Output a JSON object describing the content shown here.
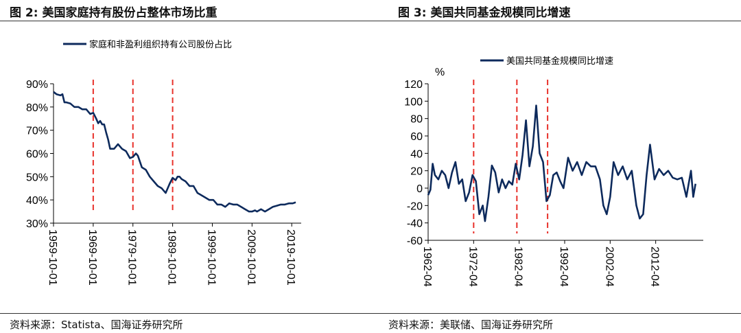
{
  "figure_left": {
    "title": "图 2:  美国家庭持有股份占整体市场比重",
    "source": "资料来源：Statista、国海证券研究所"
  },
  "figure_right": {
    "title": "图 3:  美国共同基金规模同比增速",
    "source": "资料来源：美联储、国海证券研究所"
  },
  "chart_data": [
    {
      "type": "line",
      "title": "",
      "xlabel": "",
      "ylabel": "",
      "ylim": [
        30,
        90
      ],
      "xlim": [
        1959.75,
        2020.75
      ],
      "ytick_labels": [
        "90%",
        "80%",
        "70%",
        "60%",
        "50%",
        "40%",
        "30%"
      ],
      "ytick_values": [
        90,
        80,
        70,
        60,
        50,
        40,
        30
      ],
      "xtick_labels": [
        "1959-10-01",
        "1969-10-01",
        "1979-10-01",
        "1989-10-01",
        "1999-10-01",
        "2009-10-01",
        "2019-10-01"
      ],
      "xtick_values": [
        1959.75,
        1969.75,
        1979.75,
        1989.75,
        1999.75,
        2009.75,
        2019.75
      ],
      "legend": "top-left",
      "grid": false,
      "series": [
        {
          "name": "家庭和非盈利组织持有公司股份占比",
          "color": "#0d2a5c",
          "x": [
            1959.75,
            1960.5,
            1961.5,
            1962.0,
            1962.5,
            1963.0,
            1964.0,
            1965.0,
            1966.0,
            1967.0,
            1968.0,
            1969.0,
            1969.75,
            1970.5,
            1971.0,
            1971.5,
            1972.0,
            1972.5,
            1973.0,
            1973.5,
            1974.0,
            1975.0,
            1976.0,
            1977.0,
            1978.0,
            1979.0,
            1979.75,
            1980.5,
            1981.0,
            1982.0,
            1983.0,
            1984.0,
            1985.0,
            1986.0,
            1987.0,
            1988.0,
            1989.0,
            1989.75,
            1990.5,
            1991.0,
            1991.5,
            1992.0,
            1993.0,
            1994.0,
            1995.0,
            1996.0,
            1997.0,
            1998.0,
            1999.0,
            2000.0,
            2001.0,
            2002.0,
            2003.0,
            2004.0,
            2005.0,
            2006.0,
            2007.0,
            2008.0,
            2009.0,
            2009.75,
            2010.5,
            2011.0,
            2012.0,
            2013.0,
            2014.0,
            2015.0,
            2016.0,
            2017.0,
            2018.0,
            2019.0,
            2020.0,
            2020.75
          ],
          "values": [
            86.5,
            85.5,
            85,
            85.5,
            82,
            82,
            81.5,
            80,
            80,
            79,
            79,
            77,
            77.5,
            75,
            73,
            74,
            72.5,
            72.5,
            69,
            66,
            62,
            62,
            64,
            62,
            61,
            58,
            58.5,
            60,
            59,
            54,
            53,
            50,
            48,
            46,
            45,
            43,
            47,
            49.5,
            48.5,
            50,
            50,
            49,
            48,
            46,
            46,
            43,
            42,
            41,
            40,
            40,
            38,
            38,
            37,
            38.5,
            38,
            38,
            37,
            36,
            35,
            35,
            35.5,
            35,
            36,
            35,
            36,
            37,
            37.5,
            38,
            38,
            38.5,
            38.5,
            39
          ]
        }
      ],
      "annotations": [
        {
          "type": "vline",
          "x": 1969.75,
          "color": "#e8302a",
          "style": "dashed"
        },
        {
          "type": "vline",
          "x": 1979.75,
          "color": "#e8302a",
          "style": "dashed"
        },
        {
          "type": "vline",
          "x": 1989.75,
          "color": "#e8302a",
          "style": "dashed"
        }
      ]
    },
    {
      "type": "line",
      "title": "",
      "xlabel": "",
      "ylabel": "%",
      "ylim": [
        -60,
        120
      ],
      "xlim": [
        1962.25,
        2021.5
      ],
      "ytick_labels": [
        "120",
        "100",
        "80",
        "60",
        "40",
        "20",
        "0",
        "-20",
        "-40",
        "-60"
      ],
      "ytick_values": [
        120,
        100,
        80,
        60,
        40,
        20,
        0,
        -20,
        -40,
        -60
      ],
      "xtick_labels": [
        "1962-04",
        "1972-04",
        "1982-04",
        "1992-04",
        "2002-04",
        "2012-04"
      ],
      "xtick_values": [
        1962.25,
        1972.25,
        1982.25,
        1992.25,
        2002.25,
        2012.25
      ],
      "legend": "top",
      "grid": false,
      "series": [
        {
          "name": "美国共同基金规模同比增速",
          "color": "#0d2a5c",
          "x": [
            1962.25,
            1962.75,
            1963.25,
            1963.75,
            1964.5,
            1965.25,
            1966.0,
            1966.75,
            1967.5,
            1968.25,
            1969.0,
            1969.75,
            1970.5,
            1971.25,
            1972.0,
            1972.75,
            1973.5,
            1974.25,
            1974.75,
            1975.5,
            1976.25,
            1977.0,
            1977.75,
            1978.5,
            1979.25,
            1980.0,
            1980.75,
            1981.5,
            1982.25,
            1983.0,
            1983.75,
            1984.5,
            1985.25,
            1986.0,
            1986.75,
            1987.5,
            1988.25,
            1989.0,
            1989.75,
            1990.5,
            1991.25,
            1992.0,
            1993.0,
            1994.0,
            1995.0,
            1996.0,
            1997.0,
            1998.0,
            1999.0,
            2000.0,
            2000.75,
            2001.5,
            2002.25,
            2003.0,
            2004.0,
            2005.0,
            2006.0,
            2007.0,
            2008.0,
            2008.75,
            2009.5,
            2010.25,
            2011.0,
            2012.0,
            2013.0,
            2014.0,
            2015.0,
            2016.0,
            2017.0,
            2018.0,
            2019.0,
            2019.5,
            2020.0,
            2020.5,
            2021.0
          ],
          "values": [
            -8,
            -2,
            28,
            15,
            10,
            20,
            15,
            0,
            18,
            30,
            5,
            10,
            -15,
            -5,
            15,
            8,
            -30,
            -20,
            -38,
            -10,
            26,
            18,
            -5,
            10,
            0,
            8,
            4,
            28,
            10,
            38,
            78,
            25,
            48,
            95,
            40,
            30,
            -15,
            -8,
            15,
            18,
            8,
            0,
            35,
            20,
            30,
            15,
            30,
            25,
            25,
            10,
            -20,
            -30,
            -10,
            30,
            15,
            25,
            10,
            20,
            -20,
            -35,
            -30,
            15,
            50,
            10,
            22,
            15,
            20,
            12,
            10,
            12,
            -10,
            5,
            20,
            -10,
            5
          ]
        }
      ],
      "annotations": [
        {
          "type": "vline",
          "x": 1972.25,
          "color": "#e8302a",
          "style": "dashed"
        },
        {
          "type": "vline",
          "x": 1981.75,
          "color": "#e8302a",
          "style": "dashed"
        },
        {
          "type": "vline",
          "x": 1988.5,
          "color": "#e8302a",
          "style": "dashed"
        }
      ]
    }
  ]
}
